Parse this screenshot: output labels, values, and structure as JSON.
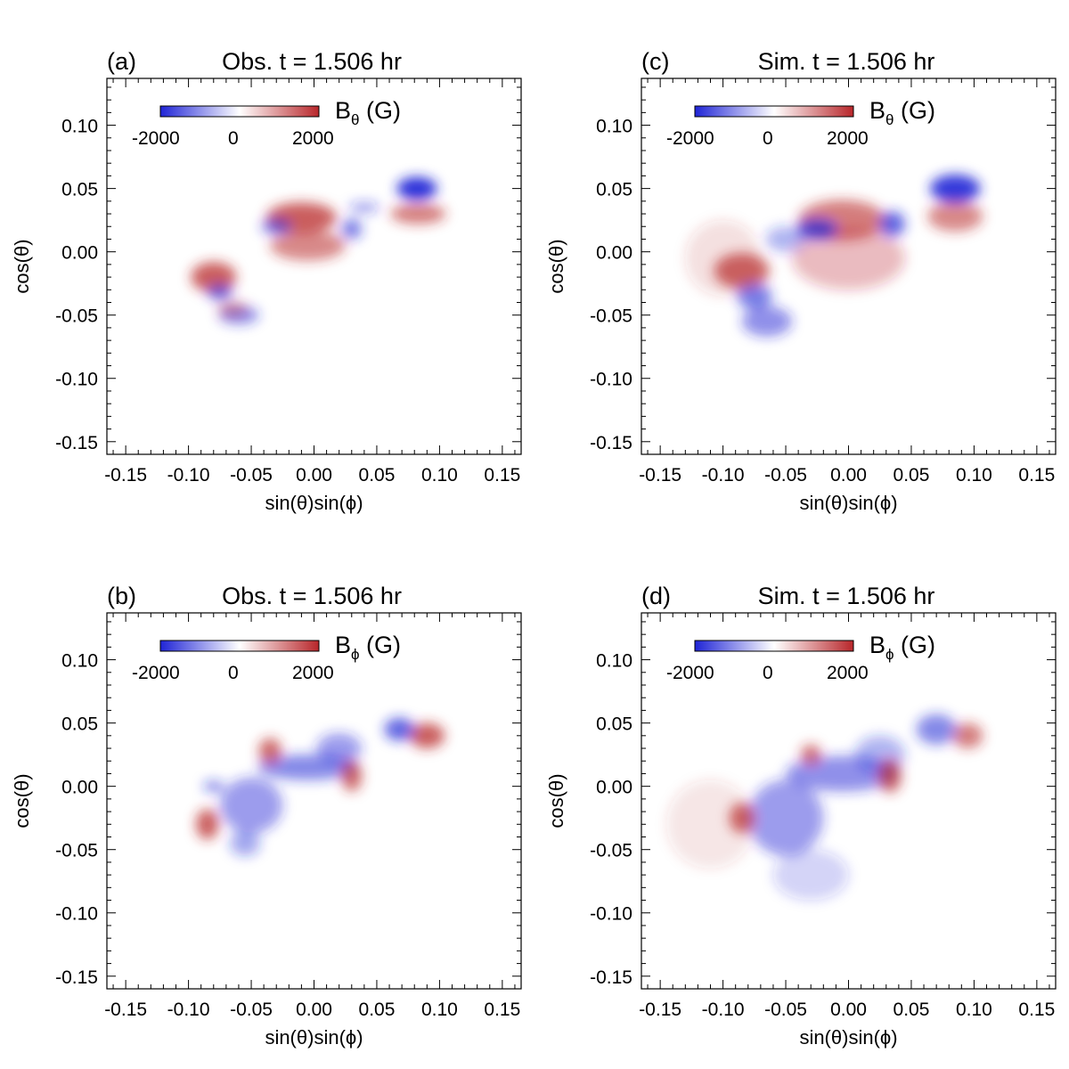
{
  "figure": {
    "colors": {
      "negative": "#1f24d6",
      "zero": "#ffffff",
      "positive": "#b8262a",
      "axis": "#000000"
    }
  },
  "chart_data": [
    {
      "id": "a",
      "type": "heatmap",
      "panel_label": "(a)",
      "title": "Obs. t = 1.506 hr",
      "xlabel": "sin(θ)sin(ϕ)",
      "ylabel": "cos(θ)",
      "xlim": [
        -0.165,
        0.165
      ],
      "ylim": [
        -0.16,
        0.137
      ],
      "xticks": [
        -0.15,
        -0.1,
        -0.05,
        0.0,
        0.05,
        0.1,
        0.15
      ],
      "xtick_labels": [
        "-0.15",
        "-0.10",
        "-0.05",
        "0.00",
        "0.05",
        "0.10",
        "0.15"
      ],
      "yticks": [
        0.1,
        0.05,
        0.0,
        -0.05,
        -0.1,
        -0.15
      ],
      "ytick_labels": [
        "0.10",
        "0.05",
        "0.00",
        "-0.05",
        "-0.10",
        "-0.15"
      ],
      "colorbar": {
        "quantity": "B",
        "subscript": "θ",
        "unit": " (G)",
        "range": [
          -2000,
          2000
        ],
        "tick_labels": [
          "-2000",
          "0",
          "2000"
        ]
      },
      "features": [
        {
          "sign": "negative",
          "x": 0.082,
          "y": 0.05,
          "sx": 0.016,
          "sy": 0.009,
          "strength": 0.95
        },
        {
          "sign": "positive",
          "x": 0.083,
          "y": 0.03,
          "sx": 0.022,
          "sy": 0.008,
          "strength": 0.6
        },
        {
          "sign": "positive",
          "x": -0.01,
          "y": 0.027,
          "sx": 0.028,
          "sy": 0.012,
          "strength": 0.75
        },
        {
          "sign": "positive",
          "x": -0.005,
          "y": 0.005,
          "sx": 0.03,
          "sy": 0.012,
          "strength": 0.55
        },
        {
          "sign": "negative",
          "x": -0.03,
          "y": 0.02,
          "sx": 0.012,
          "sy": 0.006,
          "strength": 0.6
        },
        {
          "sign": "negative",
          "x": 0.03,
          "y": 0.018,
          "sx": 0.008,
          "sy": 0.008,
          "strength": 0.6
        },
        {
          "sign": "negative",
          "x": 0.04,
          "y": 0.035,
          "sx": 0.012,
          "sy": 0.004,
          "strength": 0.45
        },
        {
          "sign": "positive",
          "x": -0.08,
          "y": -0.02,
          "sx": 0.018,
          "sy": 0.012,
          "strength": 0.75
        },
        {
          "sign": "negative",
          "x": -0.075,
          "y": -0.032,
          "sx": 0.01,
          "sy": 0.006,
          "strength": 0.65
        },
        {
          "sign": "negative",
          "x": -0.06,
          "y": -0.05,
          "sx": 0.016,
          "sy": 0.007,
          "strength": 0.55
        },
        {
          "sign": "positive",
          "x": -0.065,
          "y": -0.045,
          "sx": 0.012,
          "sy": 0.006,
          "strength": 0.4
        }
      ]
    },
    {
      "id": "c",
      "type": "heatmap",
      "panel_label": "(c)",
      "title": "Sim. t = 1.506 hr",
      "xlabel": "sin(θ)sin(ϕ)",
      "ylabel": "cos(θ)",
      "xlim": [
        -0.165,
        0.165
      ],
      "ylim": [
        -0.16,
        0.137
      ],
      "xticks": [
        -0.15,
        -0.1,
        -0.05,
        0.0,
        0.05,
        0.1,
        0.15
      ],
      "xtick_labels": [
        "-0.15",
        "-0.10",
        "-0.05",
        "0.00",
        "0.05",
        "0.10",
        "0.15"
      ],
      "yticks": [
        0.1,
        0.05,
        0.0,
        -0.05,
        -0.1,
        -0.15
      ],
      "ytick_labels": [
        "0.10",
        "0.05",
        "0.00",
        "-0.05",
        "-0.10",
        "-0.15"
      ],
      "colorbar": {
        "quantity": "B",
        "subscript": "θ",
        "unit": " (G)",
        "range": [
          -2000,
          2000
        ],
        "tick_labels": [
          "-2000",
          "0",
          "2000"
        ]
      },
      "features": [
        {
          "sign": "negative",
          "x": 0.085,
          "y": 0.05,
          "sx": 0.02,
          "sy": 0.011,
          "strength": 0.9
        },
        {
          "sign": "positive",
          "x": 0.085,
          "y": 0.028,
          "sx": 0.022,
          "sy": 0.012,
          "strength": 0.55
        },
        {
          "sign": "positive",
          "x": -0.005,
          "y": 0.025,
          "sx": 0.035,
          "sy": 0.016,
          "strength": 0.6
        },
        {
          "sign": "positive",
          "x": 0.0,
          "y": -0.005,
          "sx": 0.045,
          "sy": 0.025,
          "strength": 0.3
        },
        {
          "sign": "negative",
          "x": -0.025,
          "y": 0.018,
          "sx": 0.016,
          "sy": 0.008,
          "strength": 0.75
        },
        {
          "sign": "negative",
          "x": 0.035,
          "y": 0.022,
          "sx": 0.01,
          "sy": 0.01,
          "strength": 0.7
        },
        {
          "sign": "positive",
          "x": -0.085,
          "y": -0.015,
          "sx": 0.022,
          "sy": 0.014,
          "strength": 0.7
        },
        {
          "sign": "negative",
          "x": -0.075,
          "y": -0.035,
          "sx": 0.014,
          "sy": 0.01,
          "strength": 0.6
        },
        {
          "sign": "negative",
          "x": -0.065,
          "y": -0.055,
          "sx": 0.02,
          "sy": 0.012,
          "strength": 0.5
        },
        {
          "sign": "negative",
          "x": -0.05,
          "y": 0.01,
          "sx": 0.016,
          "sy": 0.01,
          "strength": 0.35
        },
        {
          "sign": "positive",
          "x": -0.1,
          "y": -0.005,
          "sx": 0.03,
          "sy": 0.03,
          "strength": 0.15
        }
      ]
    },
    {
      "id": "b",
      "type": "heatmap",
      "panel_label": "(b)",
      "title": "Obs. t = 1.506 hr",
      "xlabel": "sin(θ)sin(ϕ)",
      "ylabel": "cos(θ)",
      "xlim": [
        -0.165,
        0.165
      ],
      "ylim": [
        -0.16,
        0.137
      ],
      "xticks": [
        -0.15,
        -0.1,
        -0.05,
        0.0,
        0.05,
        0.1,
        0.15
      ],
      "xtick_labels": [
        "-0.15",
        "-0.10",
        "-0.05",
        "0.00",
        "0.05",
        "0.10",
        "0.15"
      ],
      "yticks": [
        0.1,
        0.05,
        0.0,
        -0.05,
        -0.1,
        -0.15
      ],
      "ytick_labels": [
        "0.10",
        "0.05",
        "0.00",
        "-0.05",
        "-0.10",
        "-0.15"
      ],
      "colorbar": {
        "quantity": "B",
        "subscript": "ϕ",
        "unit": " (G)",
        "range": [
          -2000,
          2000
        ],
        "tick_labels": [
          "-2000",
          "0",
          "2000"
        ]
      },
      "features": [
        {
          "sign": "positive",
          "x": 0.09,
          "y": 0.04,
          "sx": 0.014,
          "sy": 0.01,
          "strength": 0.75
        },
        {
          "sign": "negative",
          "x": 0.068,
          "y": 0.045,
          "sx": 0.012,
          "sy": 0.009,
          "strength": 0.7
        },
        {
          "sign": "negative",
          "x": -0.005,
          "y": 0.015,
          "sx": 0.04,
          "sy": 0.01,
          "strength": 0.55
        },
        {
          "sign": "negative",
          "x": -0.05,
          "y": -0.015,
          "sx": 0.025,
          "sy": 0.022,
          "strength": 0.45
        },
        {
          "sign": "negative",
          "x": 0.02,
          "y": 0.03,
          "sx": 0.018,
          "sy": 0.012,
          "strength": 0.45
        },
        {
          "sign": "positive",
          "x": -0.035,
          "y": 0.028,
          "sx": 0.009,
          "sy": 0.01,
          "strength": 0.7
        },
        {
          "sign": "positive",
          "x": 0.03,
          "y": 0.008,
          "sx": 0.008,
          "sy": 0.012,
          "strength": 0.7
        },
        {
          "sign": "positive",
          "x": -0.085,
          "y": -0.03,
          "sx": 0.009,
          "sy": 0.012,
          "strength": 0.75
        },
        {
          "sign": "negative",
          "x": -0.08,
          "y": 0.0,
          "sx": 0.008,
          "sy": 0.004,
          "strength": 0.6
        },
        {
          "sign": "negative",
          "x": -0.055,
          "y": -0.045,
          "sx": 0.012,
          "sy": 0.01,
          "strength": 0.4
        }
      ]
    },
    {
      "id": "d",
      "type": "heatmap",
      "panel_label": "(d)",
      "title": "Sim. t = 1.506 hr",
      "xlabel": "sin(θ)sin(ϕ)",
      "ylabel": "cos(θ)",
      "xlim": [
        -0.165,
        0.165
      ],
      "ylim": [
        -0.16,
        0.137
      ],
      "xticks": [
        -0.15,
        -0.1,
        -0.05,
        0.0,
        0.05,
        0.1,
        0.15
      ],
      "xtick_labels": [
        "-0.15",
        "-0.10",
        "-0.05",
        "0.00",
        "0.05",
        "0.10",
        "0.15"
      ],
      "yticks": [
        0.1,
        0.05,
        0.0,
        -0.05,
        -0.1,
        -0.15
      ],
      "ytick_labels": [
        "0.10",
        "0.05",
        "0.00",
        "-0.05",
        "-0.10",
        "-0.15"
      ],
      "colorbar": {
        "quantity": "B",
        "subscript": "ϕ",
        "unit": " (G)",
        "range": [
          -2000,
          2000
        ],
        "tick_labels": [
          "-2000",
          "0",
          "2000"
        ]
      },
      "features": [
        {
          "sign": "positive",
          "x": 0.095,
          "y": 0.04,
          "sx": 0.012,
          "sy": 0.01,
          "strength": 0.6
        },
        {
          "sign": "negative",
          "x": 0.07,
          "y": 0.045,
          "sx": 0.016,
          "sy": 0.012,
          "strength": 0.55
        },
        {
          "sign": "negative",
          "x": -0.005,
          "y": 0.01,
          "sx": 0.045,
          "sy": 0.014,
          "strength": 0.5
        },
        {
          "sign": "negative",
          "x": -0.05,
          "y": -0.025,
          "sx": 0.03,
          "sy": 0.03,
          "strength": 0.45
        },
        {
          "sign": "negative",
          "x": 0.025,
          "y": 0.025,
          "sx": 0.02,
          "sy": 0.015,
          "strength": 0.35
        },
        {
          "sign": "positive",
          "x": -0.03,
          "y": 0.025,
          "sx": 0.008,
          "sy": 0.008,
          "strength": 0.65
        },
        {
          "sign": "positive",
          "x": 0.033,
          "y": 0.008,
          "sx": 0.009,
          "sy": 0.013,
          "strength": 0.7
        },
        {
          "sign": "positive",
          "x": -0.085,
          "y": -0.025,
          "sx": 0.01,
          "sy": 0.012,
          "strength": 0.7
        },
        {
          "sign": "positive",
          "x": -0.11,
          "y": -0.03,
          "sx": 0.035,
          "sy": 0.035,
          "strength": 0.12
        },
        {
          "sign": "negative",
          "x": -0.03,
          "y": -0.07,
          "sx": 0.03,
          "sy": 0.02,
          "strength": 0.2
        }
      ]
    }
  ]
}
